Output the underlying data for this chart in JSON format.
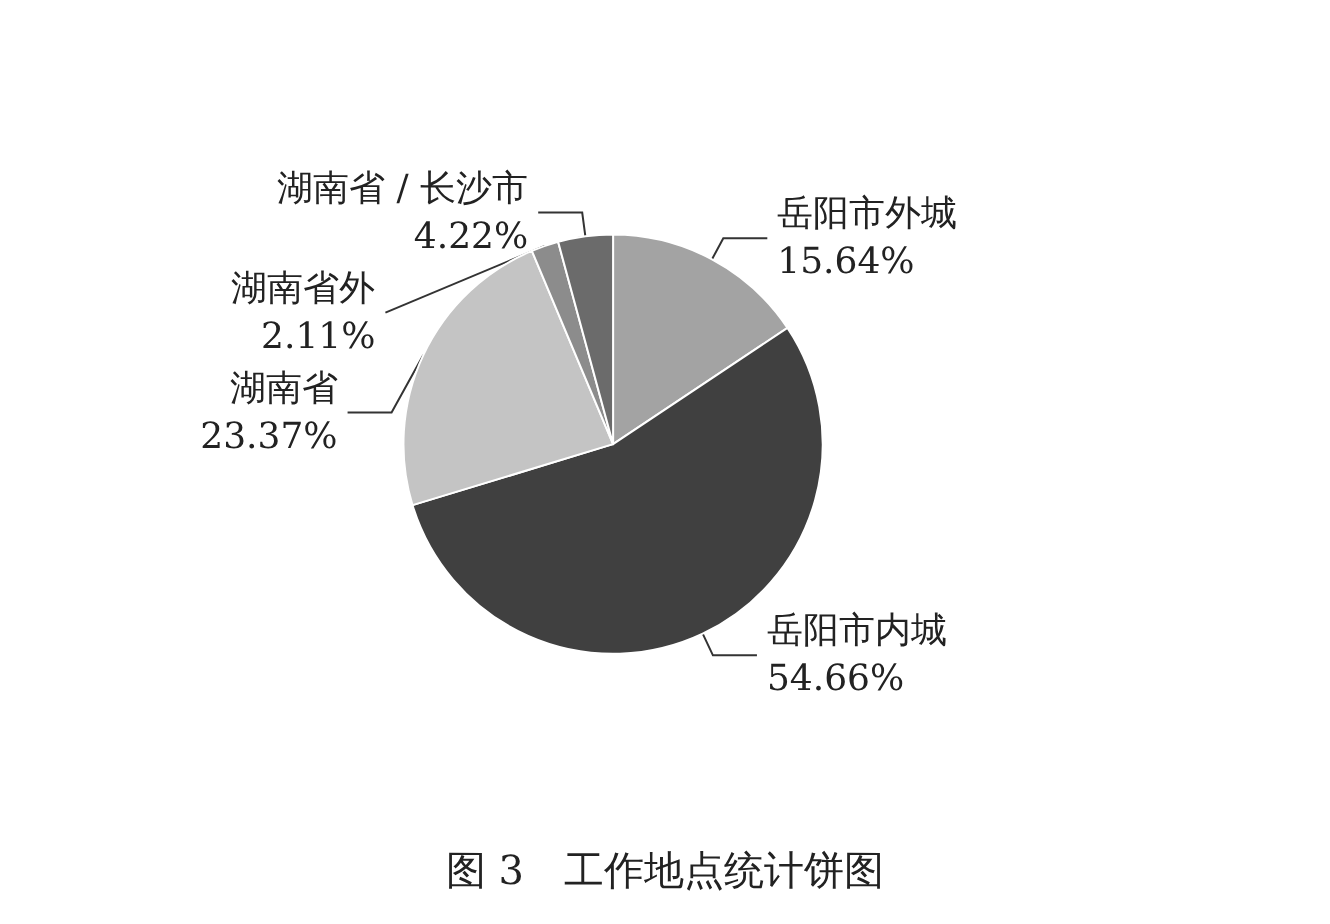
{
  "chart_data": {
    "type": "pie",
    "title": "图 3　工作地点统计饼图",
    "categories": [
      "岳阳市外城",
      "岳阳市内城",
      "湖南省",
      "湖南省外",
      "湖南省 / 长沙市"
    ],
    "values": [
      15.64,
      54.66,
      23.37,
      2.11,
      4.22
    ],
    "value_labels": [
      "15.64%",
      "54.66%",
      "23.37%",
      "2.11%",
      "4.22%"
    ],
    "colors": [
      "#a3a3a3",
      "#404040",
      "#c4c4c4",
      "#8c8c8c",
      "#6b6b6b"
    ],
    "legend": false
  }
}
